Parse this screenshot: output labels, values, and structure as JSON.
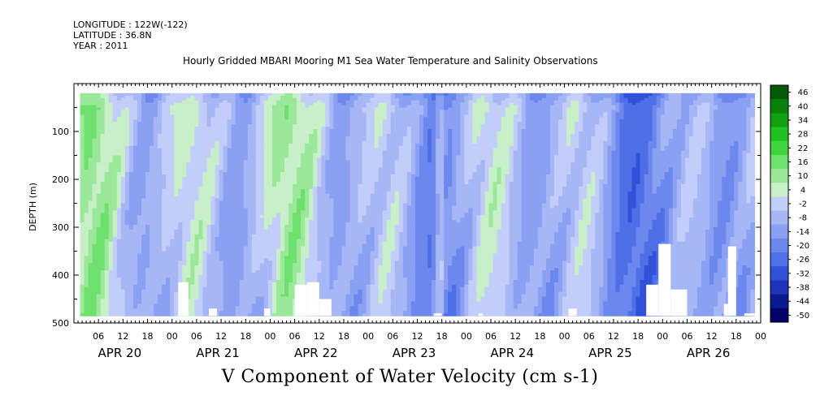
{
  "header": {
    "longitude": "LONGITUDE : 122W(-122)",
    "latitude": "LATITUDE : 36.8N",
    "year": "YEAR : 2011"
  },
  "plot_title": "Hourly Gridded MBARI Mooring M1 Sea Water Temperature and Salinity Observations",
  "variable_title": "V Component of Water Velocity (cm s-1)",
  "chart_data": {
    "type": "heatmap",
    "title": "Hourly Gridded MBARI Mooring M1 Sea Water Temperature and Salinity Observations",
    "subtitle": "V Component of Water Velocity (cm s-1)",
    "ylabel": "DEPTH (m)",
    "xlabel": "",
    "y_axis_reversed": true,
    "ylim": [
      500,
      0
    ],
    "y_ticks": [
      100,
      200,
      300,
      400,
      500
    ],
    "x_start_hour": 0,
    "x_end_hour": 168,
    "x_hour_tick_labels": [
      "06",
      "12",
      "18",
      "00",
      "06",
      "12",
      "18",
      "00",
      "06",
      "12",
      "18",
      "00",
      "06",
      "12",
      "18",
      "00",
      "06",
      "12",
      "18",
      "00",
      "06",
      "12",
      "18",
      "00",
      "06",
      "12",
      "18",
      "00"
    ],
    "date_labels": [
      "APR 20",
      "APR 21",
      "APR 22",
      "APR 23",
      "APR 24",
      "APR 25",
      "APR 26"
    ],
    "colorbar": {
      "levels": [
        -50,
        -44,
        -38,
        -32,
        -26,
        -20,
        -14,
        -8,
        -2,
        4,
        10,
        16,
        22,
        28,
        34,
        40,
        46
      ],
      "colors": [
        "#000066",
        "#0a1a90",
        "#1f33b8",
        "#3350d8",
        "#4f6fe6",
        "#6c88ee",
        "#8aa0f2",
        "#a7b7f6",
        "#c3cdfa",
        "#c8f0c8",
        "#9be89b",
        "#6ee06e",
        "#3dd43d",
        "#1ec21e",
        "#12a012",
        "#0a800a",
        "#055a05"
      ],
      "labels": [
        "46",
        "40",
        "34",
        "28",
        "22",
        "16",
        "10",
        "4",
        "-2",
        "-8",
        "-14",
        "-20",
        "-26",
        "-32",
        "-38",
        "-44",
        "-50"
      ]
    },
    "data_extent_depth_m": [
      20,
      485
    ],
    "missing_value_color": "#ffffff"
  }
}
